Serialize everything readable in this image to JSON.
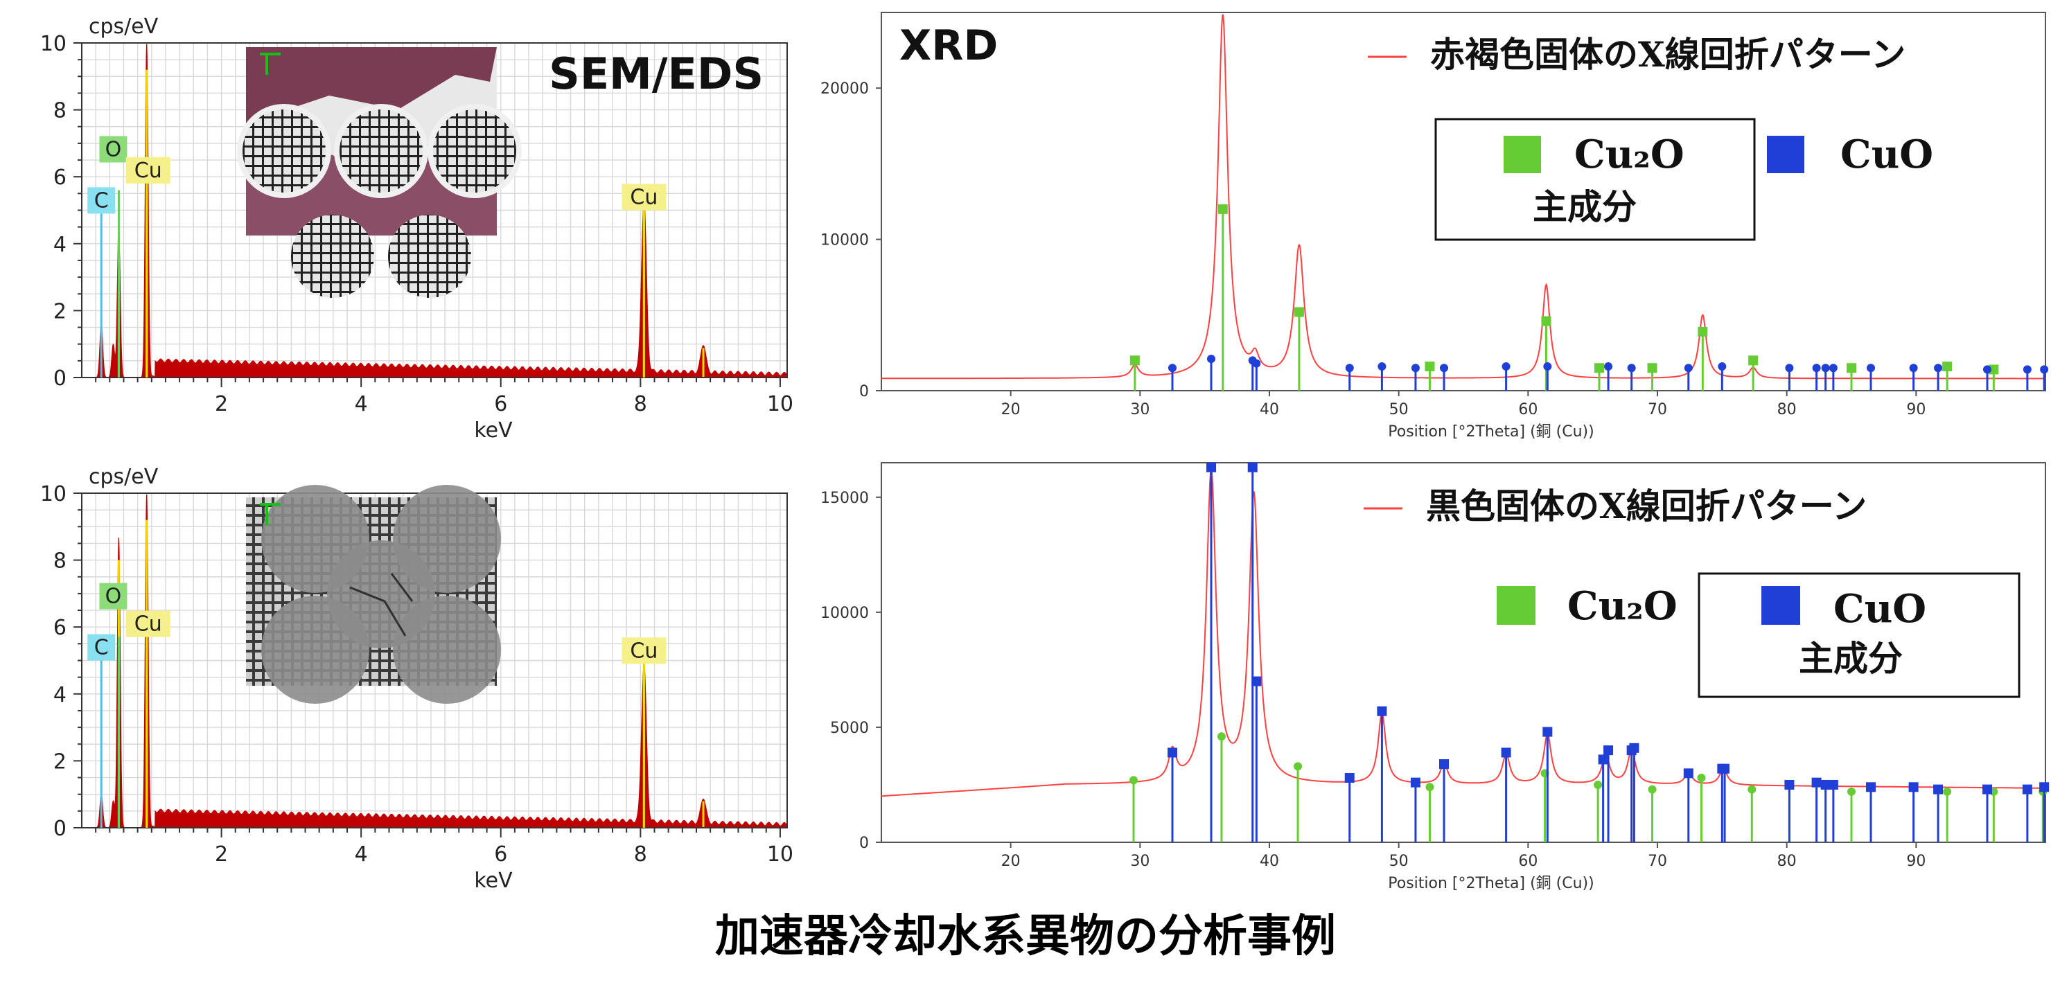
{
  "caption": "加速器冷却水系異物の分析事例",
  "colors": {
    "eds_fill": "#c00000",
    "eds_marker": "#f2d600",
    "xrd_line": "#ff4040",
    "cu2o": "#66cc33",
    "cuo": "#1f3fd6",
    "grid": "#d8d8d8",
    "label_c": "#88e0f0",
    "label_o": "#8ddc7a",
    "label_cu": "#f5f08a"
  },
  "chart_data": [
    {
      "id": "eds-top",
      "type": "area",
      "title": "SEM/EDS",
      "ylabel": "cps/eV",
      "xlabel": "keV",
      "xlim": [
        0,
        10.1
      ],
      "ylim": [
        0,
        10
      ],
      "xticks": [
        2,
        4,
        6,
        8,
        10
      ],
      "yticks": [
        0,
        2,
        4,
        6,
        8,
        10
      ],
      "grid": true,
      "peaks": [
        {
          "x": 0.28,
          "y": 1.6
        },
        {
          "x": 0.45,
          "y": 1.0
        },
        {
          "x": 0.53,
          "y": 4.5
        },
        {
          "x": 0.93,
          "y": 10.0
        },
        {
          "x": 8.05,
          "y": 5.1
        },
        {
          "x": 8.9,
          "y": 0.85
        }
      ],
      "element_labels": [
        {
          "text": "C",
          "x": 0.28,
          "line_y": 4.9
        },
        {
          "text": "O",
          "x": 0.53,
          "line_y": 5.6
        },
        {
          "text": "Cu",
          "x": 0.93,
          "line_y": 5.8
        },
        {
          "text": "Cu",
          "x": 8.05,
          "line_y": 5.0
        }
      ],
      "inset": "reddish-brown-deposit-photo"
    },
    {
      "id": "eds-bottom",
      "type": "area",
      "ylabel": "cps/eV",
      "xlabel": "keV",
      "xlim": [
        0,
        10.1
      ],
      "ylim": [
        0,
        10
      ],
      "xticks": [
        2,
        4,
        6,
        8,
        10
      ],
      "yticks": [
        0,
        2,
        4,
        6,
        8,
        10
      ],
      "grid": true,
      "peaks": [
        {
          "x": 0.28,
          "y": 1.0
        },
        {
          "x": 0.45,
          "y": 0.8
        },
        {
          "x": 0.53,
          "y": 8.7
        },
        {
          "x": 0.93,
          "y": 10.0
        },
        {
          "x": 8.05,
          "y": 4.7
        },
        {
          "x": 8.9,
          "y": 0.75
        }
      ],
      "element_labels": [
        {
          "text": "C",
          "x": 0.28,
          "line_y": 5.0
        },
        {
          "text": "O",
          "x": 0.53,
          "line_y": 5.7
        },
        {
          "text": "Cu",
          "x": 0.93,
          "line_y": 5.7
        },
        {
          "text": "Cu",
          "x": 8.05,
          "line_y": 4.9
        }
      ],
      "inset": "black-deposit-photo"
    },
    {
      "id": "xrd-top",
      "type": "line",
      "title": "XRD",
      "xlabel": "Position [°2Theta] (銅 (Cu))",
      "xlim": [
        10,
        100
      ],
      "ylim": [
        0,
        25000
      ],
      "xticks": [
        20,
        30,
        40,
        50,
        60,
        70,
        80,
        90
      ],
      "yticks": [
        0,
        10000,
        20000
      ],
      "series_name": "赤褐色固体のX線回折パターン",
      "baseline": 800,
      "peaks": [
        {
          "x": 29.6,
          "y": 1600
        },
        {
          "x": 36.4,
          "y": 24800
        },
        {
          "x": 38.9,
          "y": 1900
        },
        {
          "x": 42.3,
          "y": 9500
        },
        {
          "x": 61.4,
          "y": 7000
        },
        {
          "x": 73.5,
          "y": 5000
        },
        {
          "x": 77.4,
          "y": 1500
        }
      ],
      "cu2o_markers": [
        {
          "x": 29.6,
          "y": 2000
        },
        {
          "x": 36.4,
          "y": 12000
        },
        {
          "x": 42.3,
          "y": 5200
        },
        {
          "x": 52.4,
          "y": 1600
        },
        {
          "x": 61.4,
          "y": 4600
        },
        {
          "x": 65.5,
          "y": 1500
        },
        {
          "x": 69.6,
          "y": 1500
        },
        {
          "x": 73.5,
          "y": 3900
        },
        {
          "x": 77.4,
          "y": 2000
        },
        {
          "x": 85.0,
          "y": 1500
        },
        {
          "x": 92.4,
          "y": 1600
        },
        {
          "x": 96.0,
          "y": 1400
        }
      ],
      "cuo_markers": [
        {
          "x": 32.5,
          "y": 1500
        },
        {
          "x": 35.5,
          "y": 2100
        },
        {
          "x": 38.7,
          "y": 2000
        },
        {
          "x": 39.0,
          "y": 1800
        },
        {
          "x": 46.2,
          "y": 1500
        },
        {
          "x": 48.7,
          "y": 1600
        },
        {
          "x": 51.3,
          "y": 1500
        },
        {
          "x": 53.5,
          "y": 1500
        },
        {
          "x": 58.3,
          "y": 1600
        },
        {
          "x": 61.5,
          "y": 1600
        },
        {
          "x": 66.2,
          "y": 1600
        },
        {
          "x": 68.0,
          "y": 1500
        },
        {
          "x": 72.4,
          "y": 1500
        },
        {
          "x": 75.0,
          "y": 1600
        },
        {
          "x": 80.2,
          "y": 1500
        },
        {
          "x": 82.3,
          "y": 1500
        },
        {
          "x": 83.0,
          "y": 1500
        },
        {
          "x": 83.6,
          "y": 1500
        },
        {
          "x": 86.5,
          "y": 1500
        },
        {
          "x": 89.8,
          "y": 1500
        },
        {
          "x": 91.7,
          "y": 1500
        },
        {
          "x": 95.5,
          "y": 1400
        },
        {
          "x": 98.6,
          "y": 1400
        },
        {
          "x": 99.9,
          "y": 1400
        }
      ],
      "legend": {
        "cu2o": "Cu₂O",
        "cuo": "CuO",
        "main_component": "主成分",
        "main_for": "cu2o"
      }
    },
    {
      "id": "xrd-bottom",
      "type": "line",
      "xlabel": "Position [°2Theta] (銅 (Cu))",
      "xlim": [
        10,
        100
      ],
      "ylim": [
        0,
        16500
      ],
      "xticks": [
        20,
        30,
        40,
        50,
        60,
        70,
        80,
        90
      ],
      "yticks": [
        0,
        5000,
        10000,
        15000
      ],
      "series_name": "黒色固体のX線回折パターン",
      "baseline": 2000,
      "peaks": [
        {
          "x": 32.5,
          "y": 3800
        },
        {
          "x": 35.5,
          "y": 16000
        },
        {
          "x": 38.8,
          "y": 15000
        },
        {
          "x": 48.7,
          "y": 5600
        },
        {
          "x": 53.5,
          "y": 3400
        },
        {
          "x": 58.3,
          "y": 3800
        },
        {
          "x": 61.5,
          "y": 4700
        },
        {
          "x": 66.0,
          "y": 3800
        },
        {
          "x": 68.0,
          "y": 4000
        },
        {
          "x": 72.4,
          "y": 3000
        },
        {
          "x": 75.1,
          "y": 3200
        }
      ],
      "cu2o_markers": [
        {
          "x": 29.5,
          "y": 2700
        },
        {
          "x": 36.3,
          "y": 4600
        },
        {
          "x": 42.2,
          "y": 3300
        },
        {
          "x": 52.4,
          "y": 2400
        },
        {
          "x": 61.3,
          "y": 3000
        },
        {
          "x": 65.4,
          "y": 2500
        },
        {
          "x": 69.6,
          "y": 2300
        },
        {
          "x": 73.4,
          "y": 2800
        },
        {
          "x": 77.3,
          "y": 2300
        },
        {
          "x": 85.0,
          "y": 2200
        },
        {
          "x": 92.4,
          "y": 2200
        },
        {
          "x": 96.0,
          "y": 2200
        },
        {
          "x": 99.8,
          "y": 2200
        }
      ],
      "cuo_markers": [
        {
          "x": 32.5,
          "y": 3900
        },
        {
          "x": 35.5,
          "y": 16300
        },
        {
          "x": 38.7,
          "y": 16300
        },
        {
          "x": 39.0,
          "y": 7000
        },
        {
          "x": 46.2,
          "y": 2800
        },
        {
          "x": 48.7,
          "y": 5700
        },
        {
          "x": 51.3,
          "y": 2600
        },
        {
          "x": 53.5,
          "y": 3400
        },
        {
          "x": 58.3,
          "y": 3900
        },
        {
          "x": 61.5,
          "y": 4800
        },
        {
          "x": 65.8,
          "y": 3600
        },
        {
          "x": 66.2,
          "y": 4000
        },
        {
          "x": 68.0,
          "y": 4000
        },
        {
          "x": 68.2,
          "y": 4100
        },
        {
          "x": 72.4,
          "y": 3000
        },
        {
          "x": 75.0,
          "y": 3200
        },
        {
          "x": 75.2,
          "y": 3200
        },
        {
          "x": 80.2,
          "y": 2500
        },
        {
          "x": 82.3,
          "y": 2600
        },
        {
          "x": 83.0,
          "y": 2500
        },
        {
          "x": 83.6,
          "y": 2500
        },
        {
          "x": 86.5,
          "y": 2400
        },
        {
          "x": 89.8,
          "y": 2400
        },
        {
          "x": 91.7,
          "y": 2300
        },
        {
          "x": 95.5,
          "y": 2300
        },
        {
          "x": 98.6,
          "y": 2300
        },
        {
          "x": 99.9,
          "y": 2400
        }
      ],
      "legend": {
        "cu2o": "Cu₂O",
        "cuo": "CuO",
        "main_component": "主成分",
        "main_for": "cuo"
      }
    }
  ]
}
